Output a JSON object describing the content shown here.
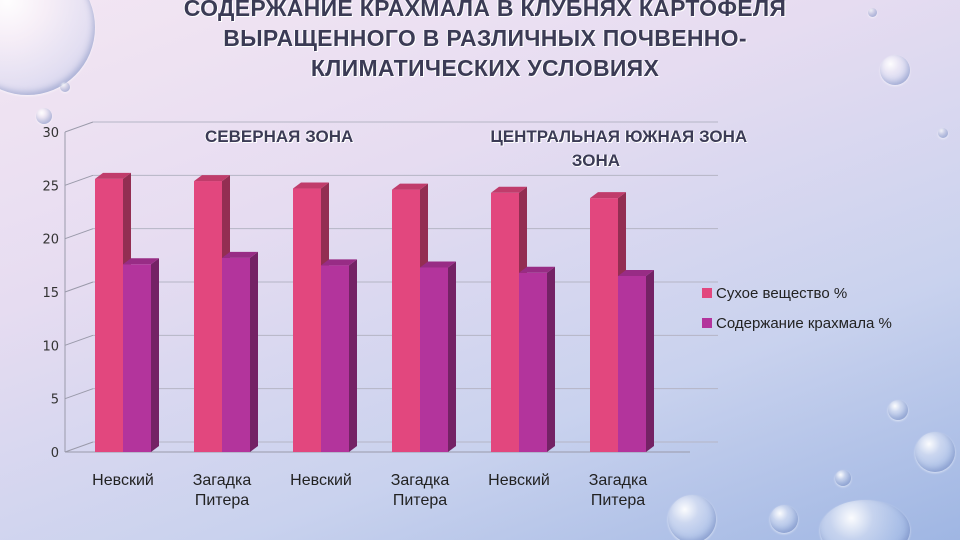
{
  "title": "СОДЕРЖАНИЕ КРАХМАЛА В КЛУБНЯХ КАРТОФЕЛЯ\nВЫРАЩЕННОГО В РАЗЛИЧНЫХ ПОЧВЕННО-\nКЛИМАТИЧЕСКИХ УСЛОВИЯХ",
  "zones": [
    "СЕВЕРНАЯ ЗОНА",
    "ЦЕНТРАЛЬНАЯ\nЗОНА",
    "ЮЖНАЯ ЗОНА"
  ],
  "colors": {
    "dry_matter": "#e2477e",
    "starch": "#b3349c"
  },
  "chart_data": {
    "type": "bar",
    "categories": [
      "Невский",
      "Загадка\nПитера",
      "Невский",
      "Загадка\nПитера",
      "Невский",
      "Загадка\nПитера"
    ],
    "series": [
      {
        "name": "Сухое вещество %",
        "values": [
          25.6,
          25.4,
          24.7,
          24.6,
          24.3,
          23.8
        ]
      },
      {
        "name": "Содержание крахмала %",
        "values": [
          17.6,
          18.2,
          17.5,
          17.3,
          16.8,
          16.5
        ]
      }
    ],
    "ylim": [
      0,
      30
    ],
    "yticks": [
      0,
      5,
      10,
      15,
      20,
      25,
      30
    ],
    "legend": "right",
    "grid": true
  }
}
